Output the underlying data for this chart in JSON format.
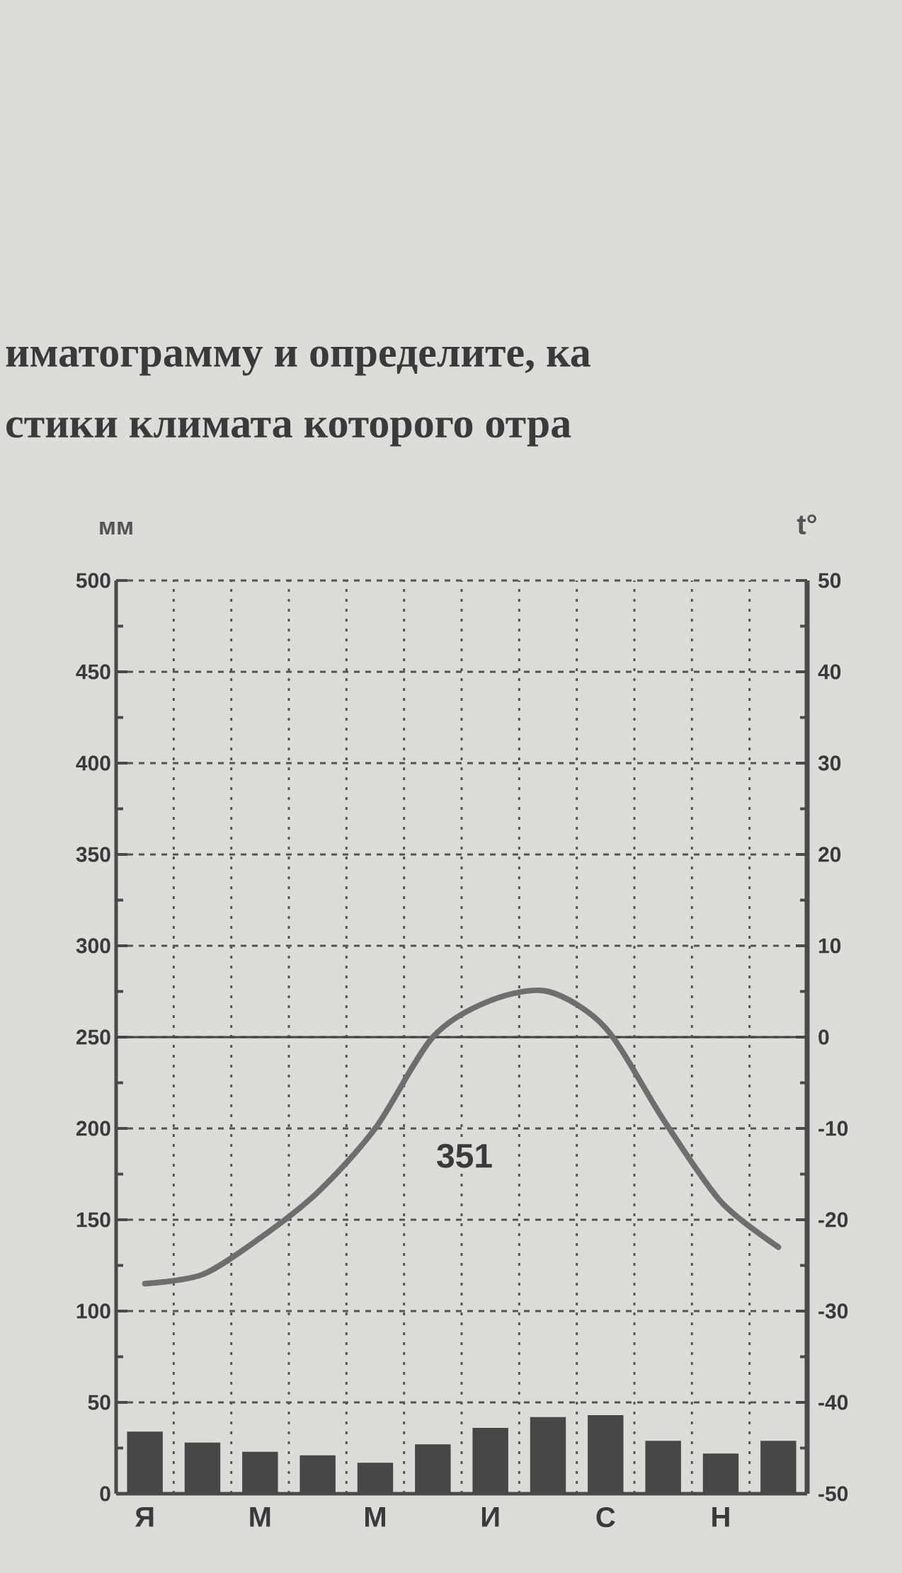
{
  "chart_data": {
    "type": "bar",
    "annotations": [
      "иматограмму и определите, ка",
      "стики климата которого отра",
      "351"
    ],
    "ylabel": "мм",
    "y2label": "t°",
    "categories": [
      "Я",
      null,
      "М",
      null,
      "М",
      null,
      "И",
      null,
      "С",
      null,
      "Н",
      null
    ],
    "series": [
      {
        "axis": "y",
        "color": "#474747",
        "values": [
          34,
          28,
          23,
          21,
          17,
          27,
          36,
          42,
          43,
          29,
          22,
          29
        ]
      },
      {
        "type": "line",
        "axis": "y2",
        "color": "#6e6e6e",
        "values": [
          -27,
          -26,
          -22,
          -17,
          -10,
          0,
          4,
          5,
          1,
          -9,
          -18,
          -23
        ]
      }
    ],
    "ylim": [
      0,
      500
    ],
    "yticks": [
      0,
      50,
      100,
      150,
      200,
      250,
      300,
      350,
      400,
      450,
      500
    ],
    "y2lim": [
      -50,
      50
    ],
    "y2ticks": [
      -50,
      -40,
      -30,
      -20,
      -10,
      0,
      10,
      20,
      30,
      40,
      50
    ],
    "ref_lines": [
      {
        "axis": "y2",
        "value": 0,
        "color": "#444444",
        "line_style": "solid"
      }
    ],
    "grid": true,
    "marker": "none"
  }
}
